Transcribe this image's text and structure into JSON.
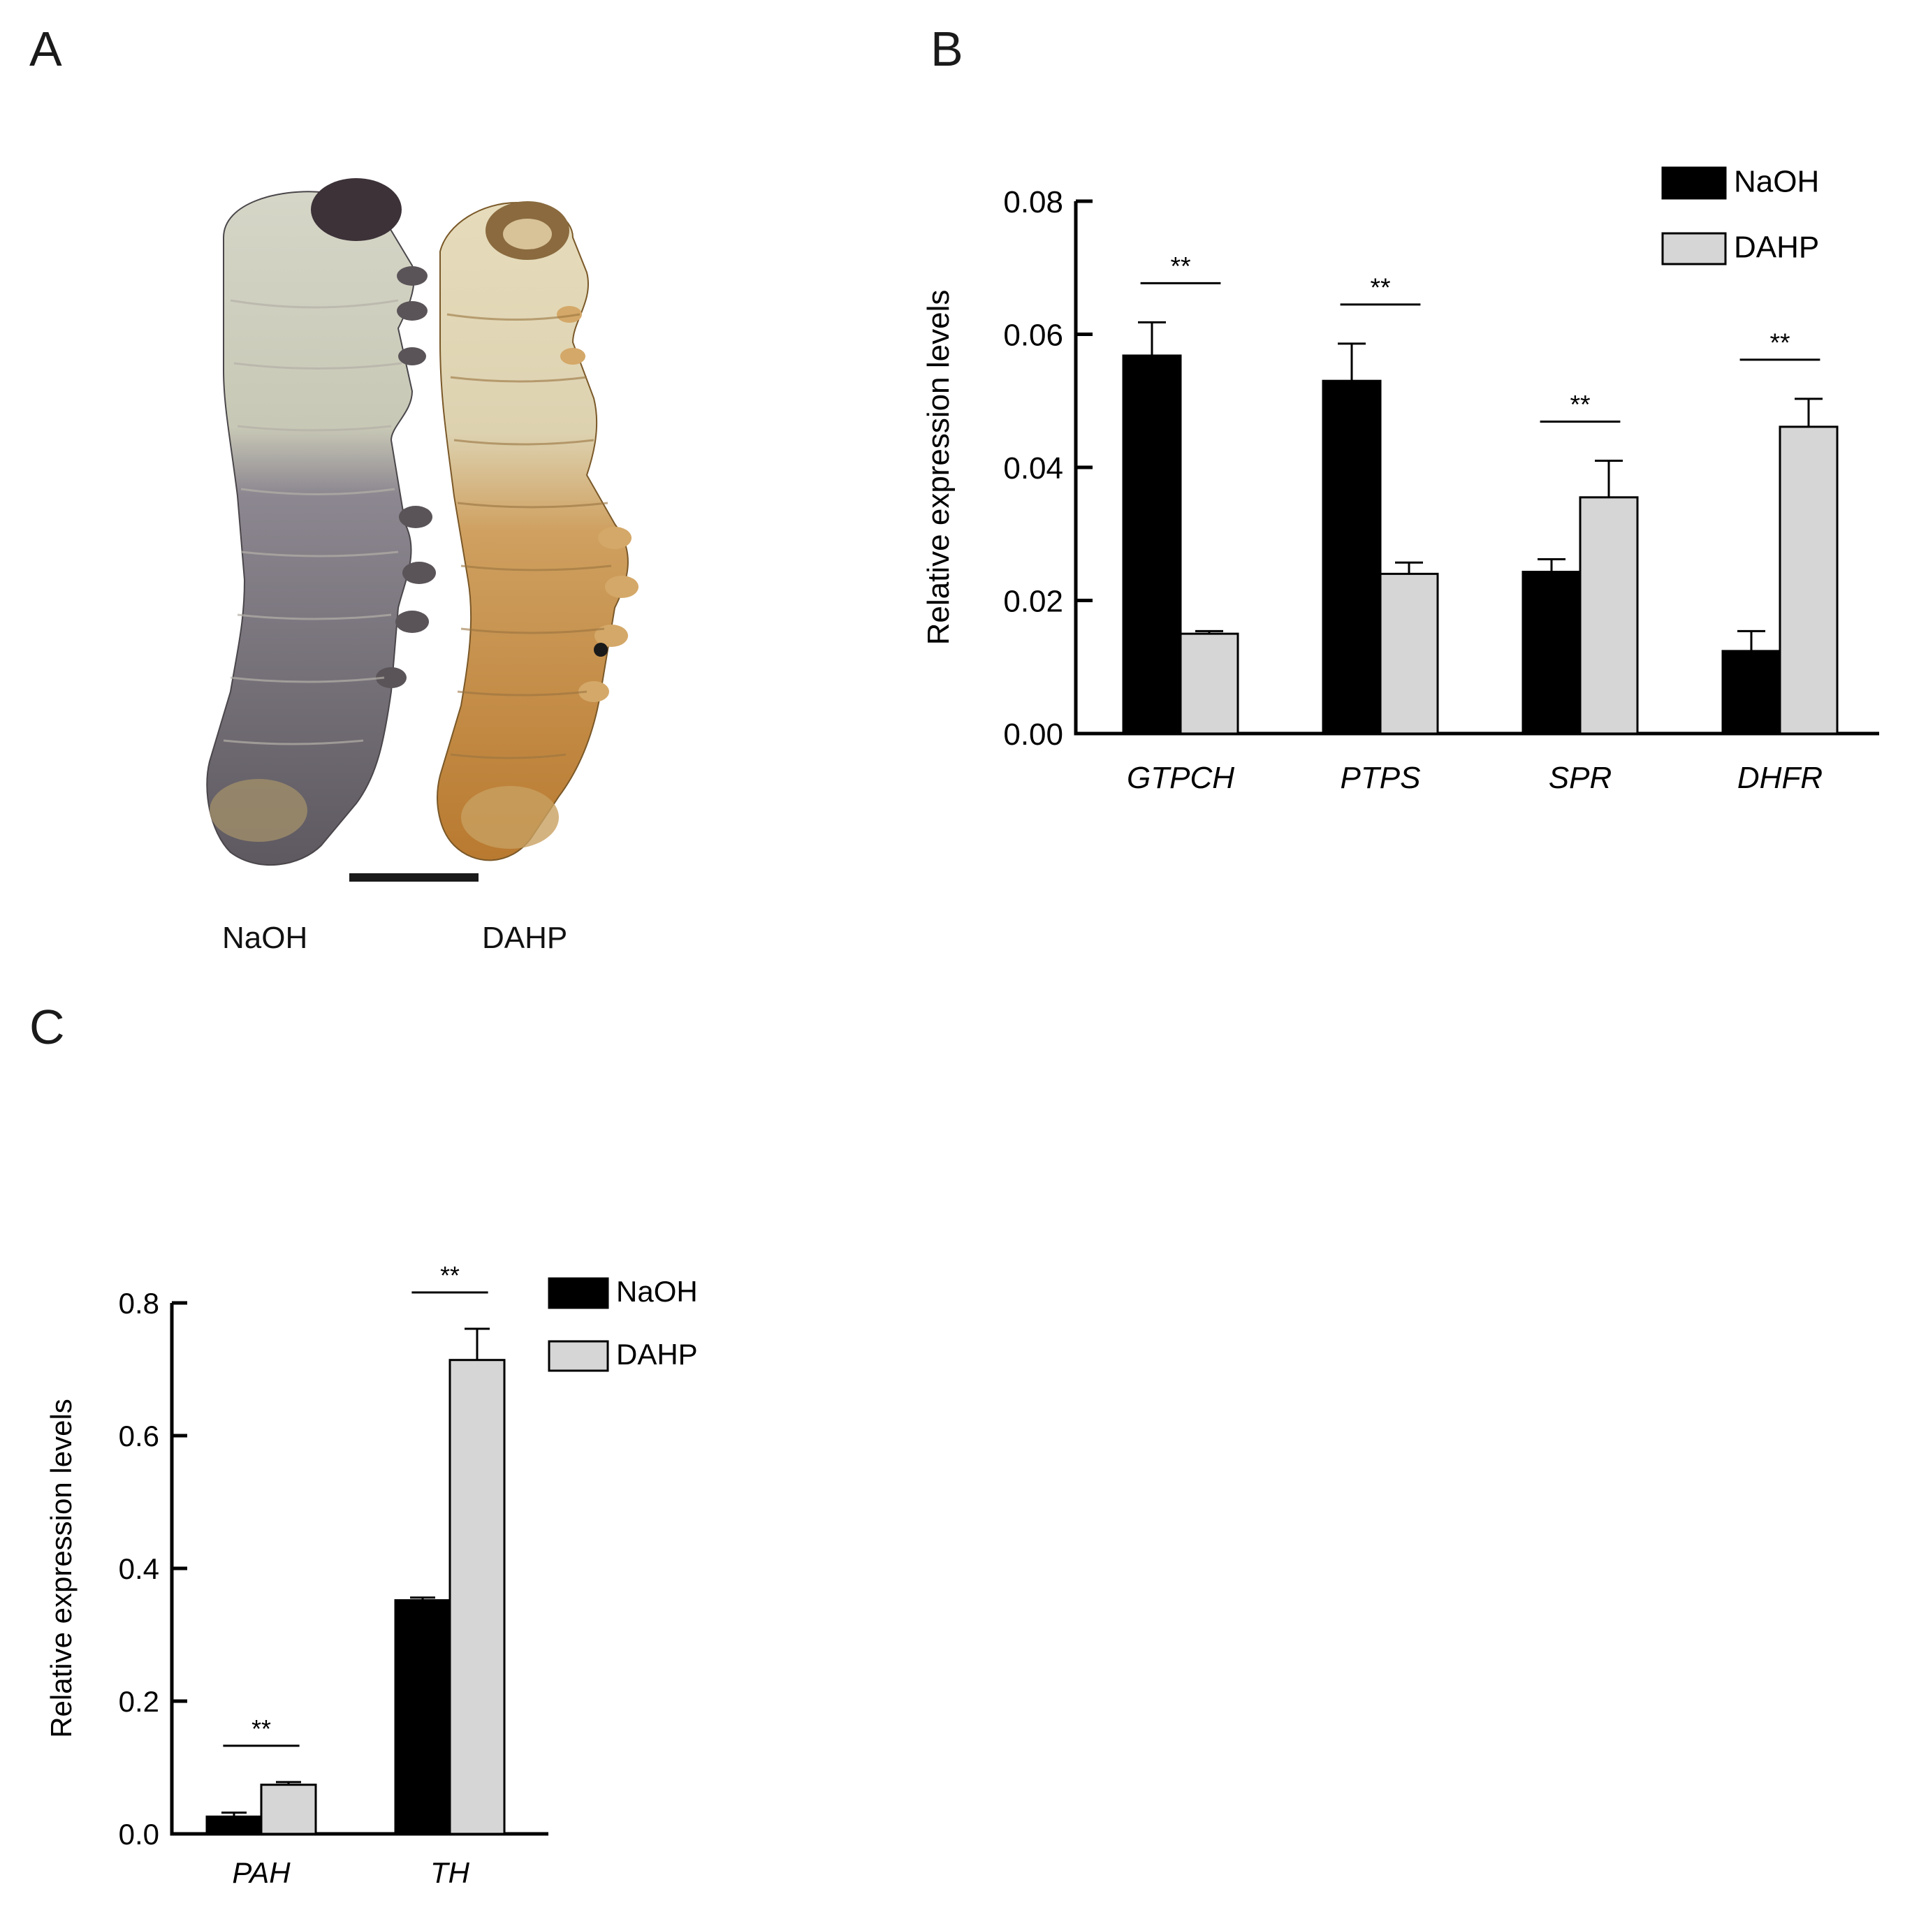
{
  "panels": {
    "a": {
      "letter": "A",
      "specimen_labels": [
        "NaOH",
        "DAHP"
      ]
    },
    "b": {
      "letter": "B"
    },
    "c": {
      "letter": "C"
    }
  },
  "colors": {
    "naoh_bar": "#000000",
    "dahp_bar": "#d6d6d6",
    "naoh_larva": "#6e6a70",
    "dahp_larva": "#c89858"
  },
  "chart_data": [
    {
      "id": "B",
      "type": "bar",
      "ylabel": "Relative expression levels",
      "ylim": [
        0,
        0.08
      ],
      "yticks": [
        "0.00",
        "0.02",
        "0.04",
        "0.06",
        "0.08"
      ],
      "ytick_values": [
        0,
        0.02,
        0.04,
        0.06,
        0.08
      ],
      "categories": [
        "GTPCH",
        "PTPS",
        "SPR",
        "DHFR"
      ],
      "series": [
        {
          "name": "NaOH",
          "values": [
            0.0568,
            0.053,
            0.0243,
            0.0124
          ],
          "errors": [
            0.005,
            0.0056,
            0.0019,
            0.003
          ]
        },
        {
          "name": "DAHP",
          "values": [
            0.015,
            0.024,
            0.0355,
            0.0461
          ],
          "errors": [
            0.0004,
            0.0017,
            0.0055,
            0.0042
          ]
        }
      ],
      "significance": [
        "**",
        "**",
        "**",
        "**"
      ],
      "legend": "top-right",
      "grid": false
    },
    {
      "id": "C",
      "type": "bar",
      "ylabel": "Relative expression levels",
      "ylim": [
        0,
        0.8
      ],
      "yticks": [
        "0.0",
        "0.2",
        "0.4",
        "0.6",
        "0.8"
      ],
      "ytick_values": [
        0,
        0.2,
        0.4,
        0.6,
        0.8
      ],
      "categories": [
        "PAH",
        "TH"
      ],
      "series": [
        {
          "name": "NaOH",
          "values": [
            0.026,
            0.352
          ],
          "errors": [
            0.006,
            0.004
          ]
        },
        {
          "name": "DAHP",
          "values": [
            0.074,
            0.714
          ],
          "errors": [
            0.004,
            0.047
          ]
        }
      ],
      "significance": [
        "**",
        "**"
      ],
      "legend": "top-right",
      "grid": false
    }
  ]
}
